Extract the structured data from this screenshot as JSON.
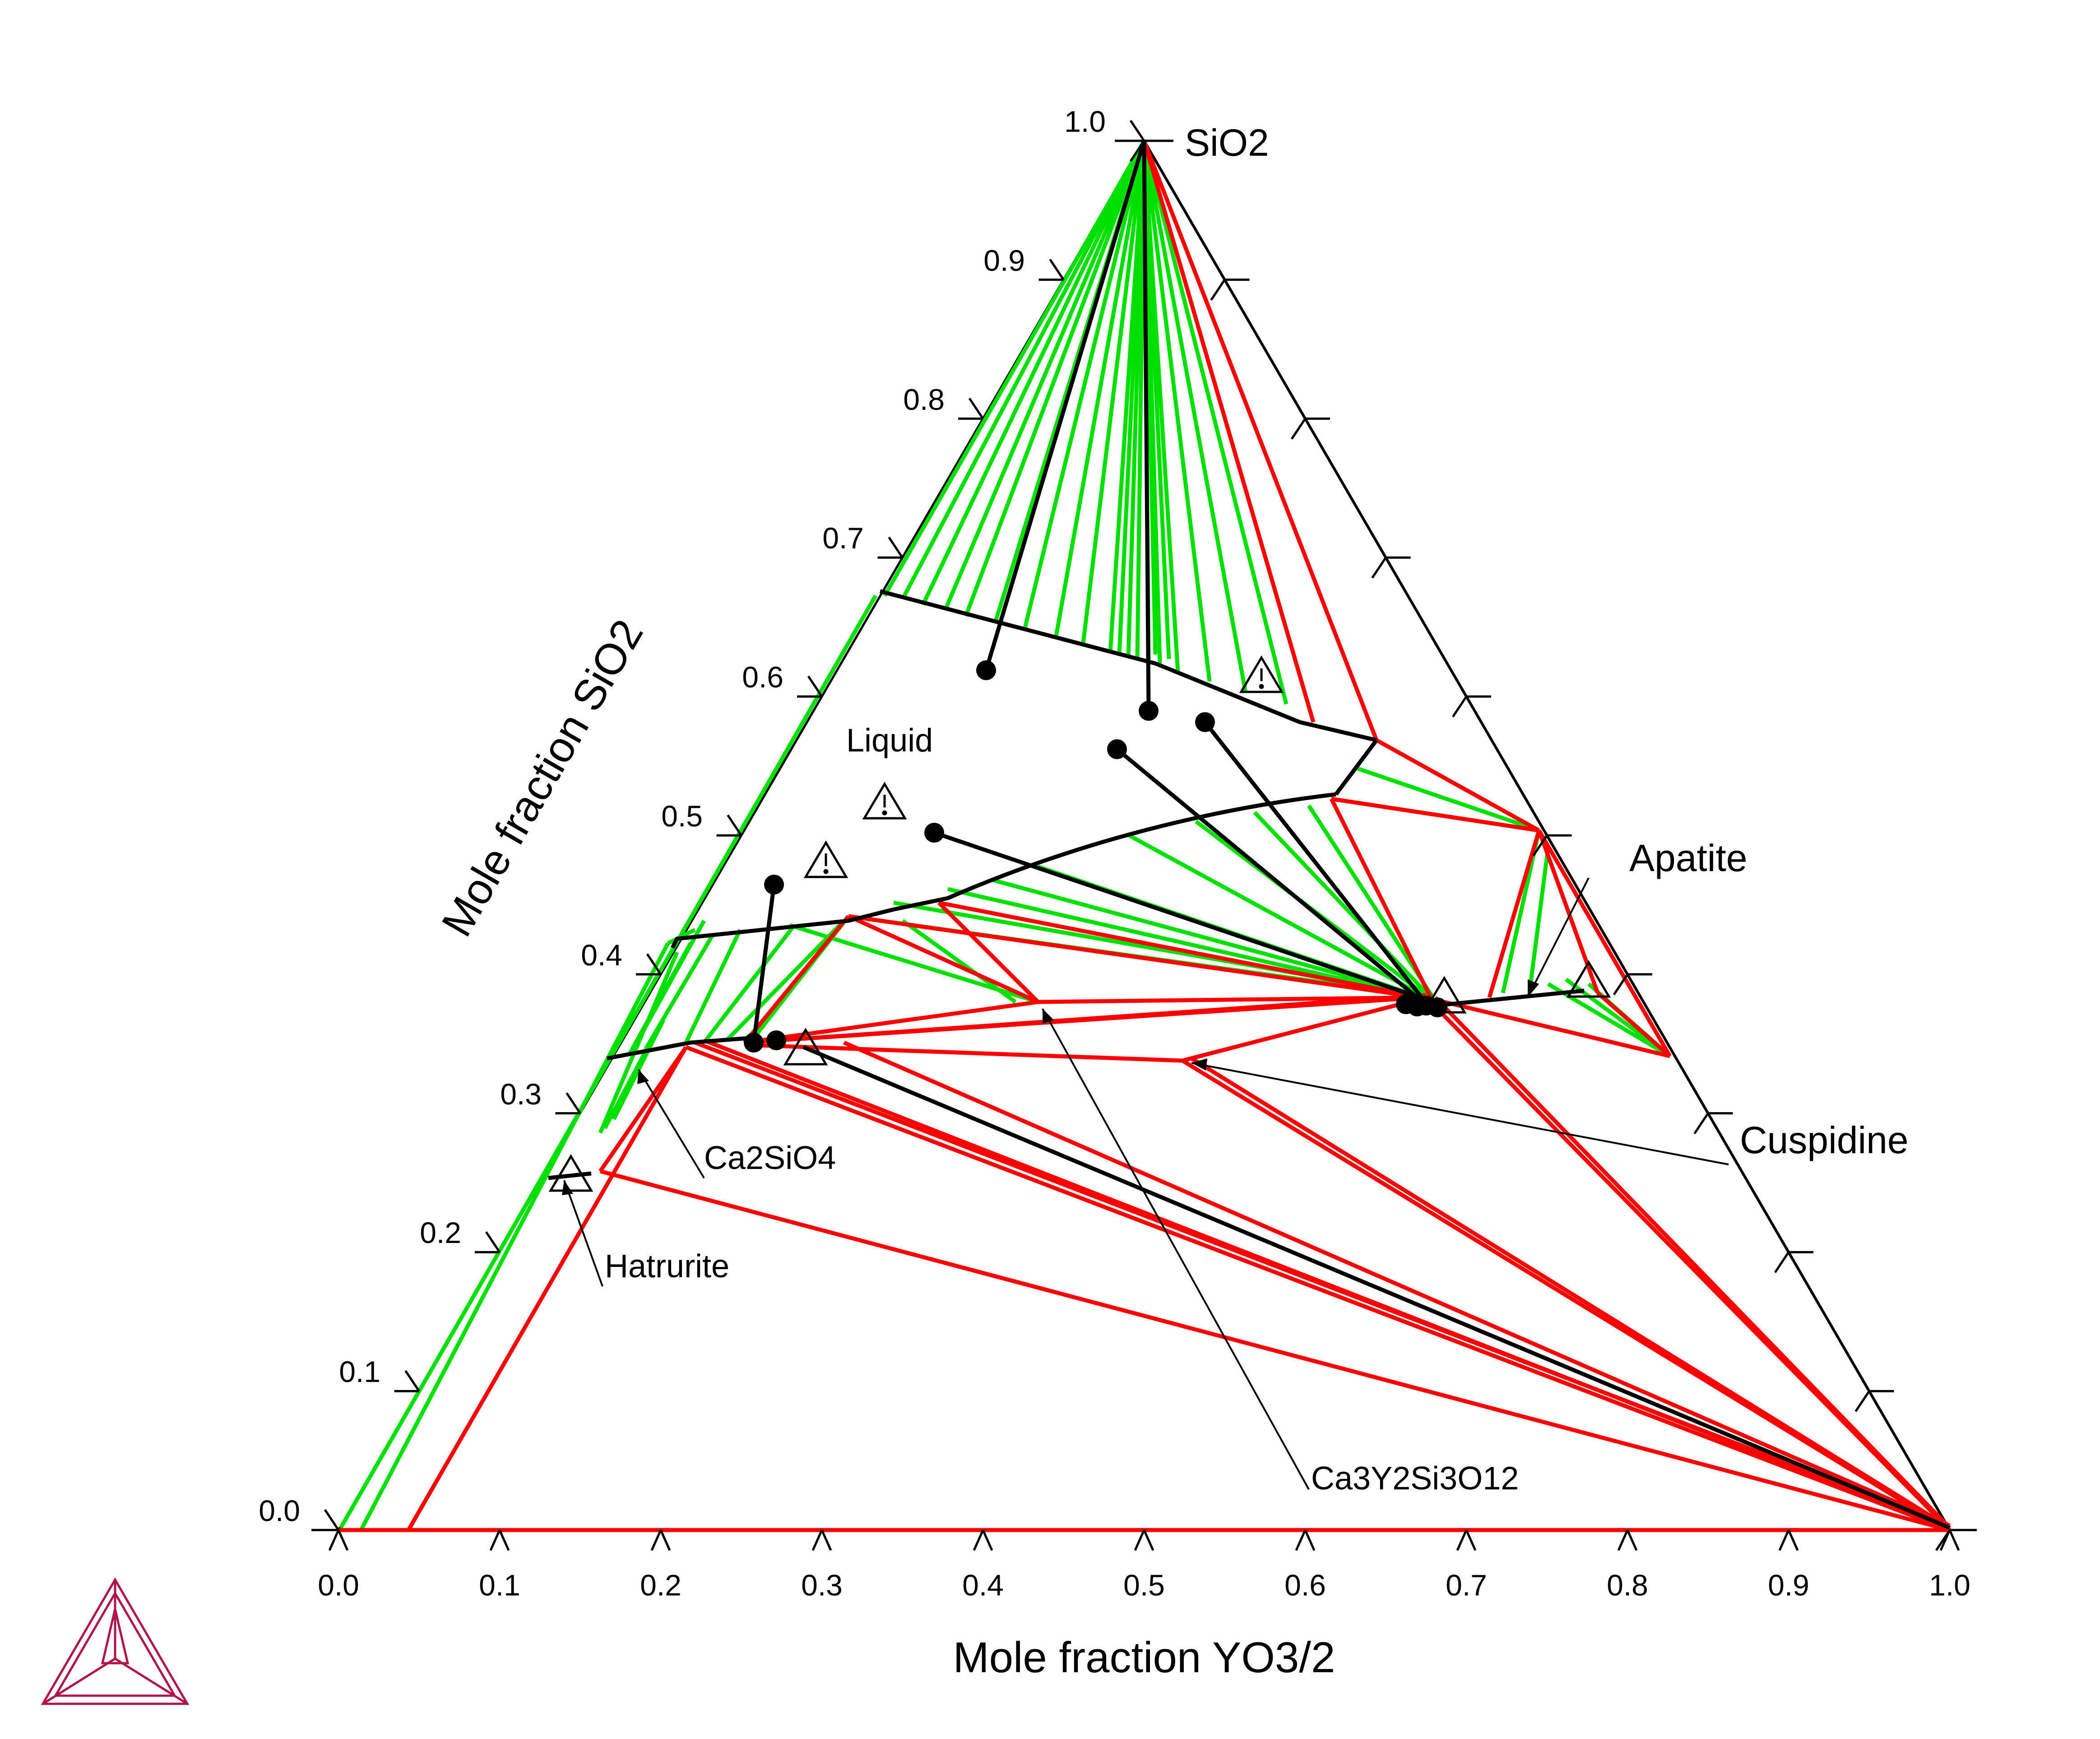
{
  "diagram": {
    "x_axis_title": "Mole fraction YO3/2",
    "y_axis_title": "Mole fraction SiO2",
    "apex_label": "SiO2",
    "apex_value": "1.0",
    "x_ticks": [
      "0.0",
      "0.1",
      "0.2",
      "0.3",
      "0.4",
      "0.5",
      "0.6",
      "0.7",
      "0.8",
      "0.9",
      "1.0"
    ],
    "left_ticks": [
      "0.0",
      "0.1",
      "0.2",
      "0.3",
      "0.4",
      "0.5",
      "0.6",
      "0.7",
      "0.8",
      "0.9"
    ],
    "phase_labels": {
      "liquid": "Liquid",
      "apatite": "Apatite",
      "cuspidine": "Cuspidine",
      "ca2sio4": "Ca2SiO4",
      "hatrurite": "Hatrurite",
      "ca3y2si3o12": "Ca3Y2Si3O12"
    },
    "colors": {
      "two_phase_tie_lines": "#00e000",
      "three_phase_triangles": "#ff0000",
      "phase_boundaries": "#000000",
      "logo": "#b0154a"
    },
    "icons": [
      "warning-triangle-icon",
      "thermo-calc-logo-icon"
    ]
  }
}
